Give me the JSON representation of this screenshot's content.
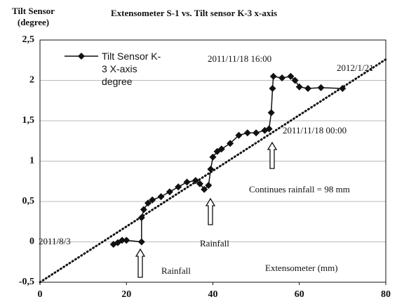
{
  "chart_data": {
    "type": "scatter",
    "title": "Extensometer S-1 vs. Tilt sensor K-3 x-axis",
    "ylabel": "Tilt Sensor (degree)",
    "xlabel": "Extensometer (mm)",
    "xlim": [
      0,
      80
    ],
    "xticks": [
      0,
      20,
      40,
      60,
      80
    ],
    "ylim": [
      -0.5,
      2.5
    ],
    "yticks": [
      {
        "value": -0.5,
        "label": "-0,5"
      },
      0,
      {
        "value": 0.5,
        "label": "0,5"
      },
      1,
      {
        "value": 1.5,
        "label": "1,5"
      },
      2,
      {
        "value": 2.5,
        "label": "2,5"
      }
    ],
    "grid": true,
    "legend": "upper left",
    "series": [
      {
        "name": "Tilt Sensor K-3 X-axis degree",
        "color": "#111111",
        "x": [
          17,
          18,
          19,
          20,
          23.5,
          23.5,
          24,
          25,
          26,
          28,
          30,
          32,
          34,
          36,
          37,
          38,
          39,
          39.5,
          40,
          41,
          42,
          44,
          46,
          48,
          50,
          52,
          53,
          53.5,
          53.8,
          54,
          56,
          58,
          59,
          60,
          62,
          65,
          70
        ],
        "values": [
          -0.03,
          -0.01,
          0.02,
          0.02,
          0.0,
          0.3,
          0.4,
          0.48,
          0.52,
          0.56,
          0.62,
          0.68,
          0.74,
          0.76,
          0.72,
          0.65,
          0.7,
          0.9,
          1.05,
          1.12,
          1.15,
          1.22,
          1.32,
          1.35,
          1.35,
          1.38,
          1.4,
          1.6,
          1.9,
          2.05,
          2.03,
          2.05,
          2.0,
          1.92,
          1.9,
          1.91,
          1.9
        ]
      },
      {
        "color": "#111111",
        "dotted": true,
        "x": [
          0,
          80
        ],
        "values": [
          -0.5,
          2.26
        ]
      }
    ],
    "annotations": [
      "2011/8/3",
      "2011/11/18 16:00",
      "2012/1/21",
      "2011/11/18 00:00",
      "Continues rainfall = 98 mm",
      "Rainfall",
      "Rainfall"
    ]
  }
}
